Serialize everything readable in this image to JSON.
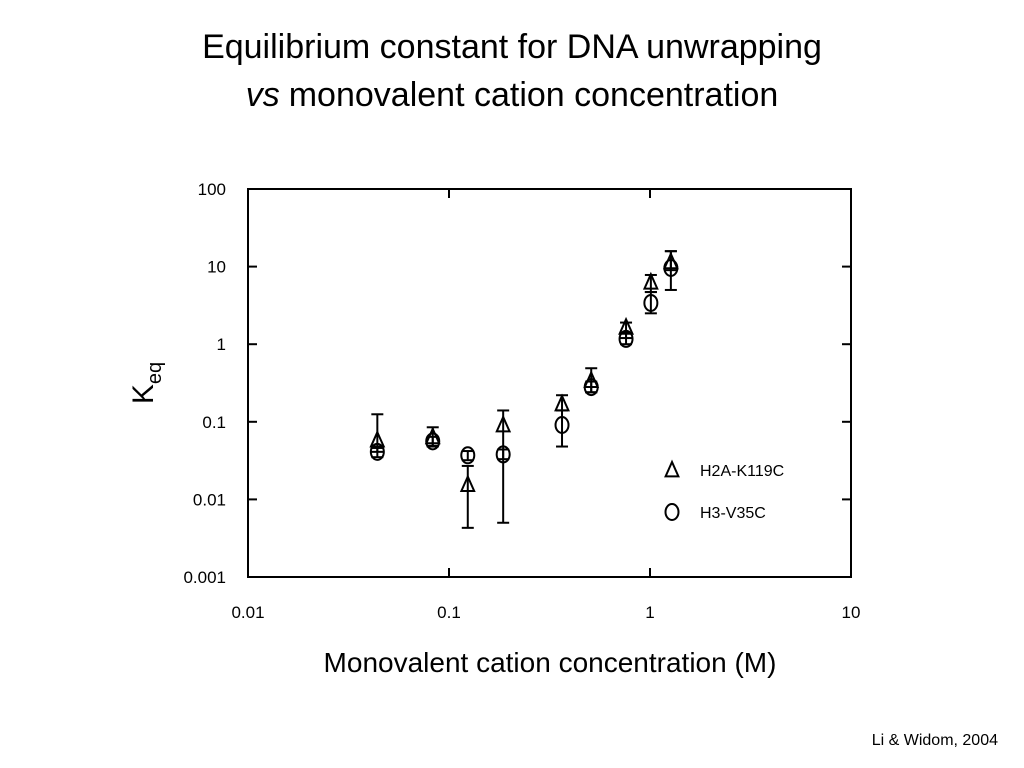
{
  "chart_data": {
    "type": "scatter",
    "title": "Equilibrium constant for DNA unwrapping",
    "subtitle_parts": [
      "vs",
      "monovalent cation concentration"
    ],
    "xlabel": "Monovalent cation concentration (M)",
    "ylabel": "K",
    "ylabel_sub": "eq",
    "credit": "Li & Widom, 2004",
    "xscale": "log",
    "yscale": "log",
    "xlim": [
      0.01,
      10
    ],
    "xticks": [
      0.01,
      0.1,
      1,
      10
    ],
    "ylim": [
      0.001,
      100
    ],
    "yticks": [
      0.001,
      0.01,
      0.1,
      1,
      10,
      100
    ],
    "color": "#000000",
    "legend": "lower right",
    "series": [
      {
        "name": "H2A-K119C",
        "marker": "triangle",
        "x": [
          0.044,
          0.083,
          0.124,
          0.186,
          0.365,
          0.51,
          0.76,
          1.01,
          1.27
        ],
        "values": [
          0.058,
          0.064,
          0.0155,
          0.091,
          0.17,
          0.34,
          1.65,
          6.3,
          11.5
        ],
        "lower": [
          0.041,
          0.048,
          0.0043,
          0.005,
          0.14,
          0.24,
          1.2,
          4.7,
          9
        ],
        "upper": [
          0.125,
          0.085,
          0.027,
          0.14,
          0.22,
          0.49,
          1.9,
          7.8,
          15.8
        ]
      },
      {
        "name": "H3-V35C",
        "marker": "circle",
        "x": [
          0.044,
          0.083,
          0.124,
          0.186,
          0.365,
          0.51,
          0.76,
          1.01,
          1.27
        ],
        "values": [
          0.041,
          0.056,
          0.037,
          0.038,
          0.091,
          0.28,
          1.17,
          3.4,
          9.6
        ],
        "lower": [
          0.035,
          0.049,
          0.032,
          0.033,
          0.048,
          0.24,
          1.0,
          2.5,
          5
        ],
        "upper": [
          0.046,
          0.064,
          0.042,
          0.044,
          0.14,
          0.33,
          1.4,
          4.7,
          15.8
        ]
      }
    ]
  }
}
